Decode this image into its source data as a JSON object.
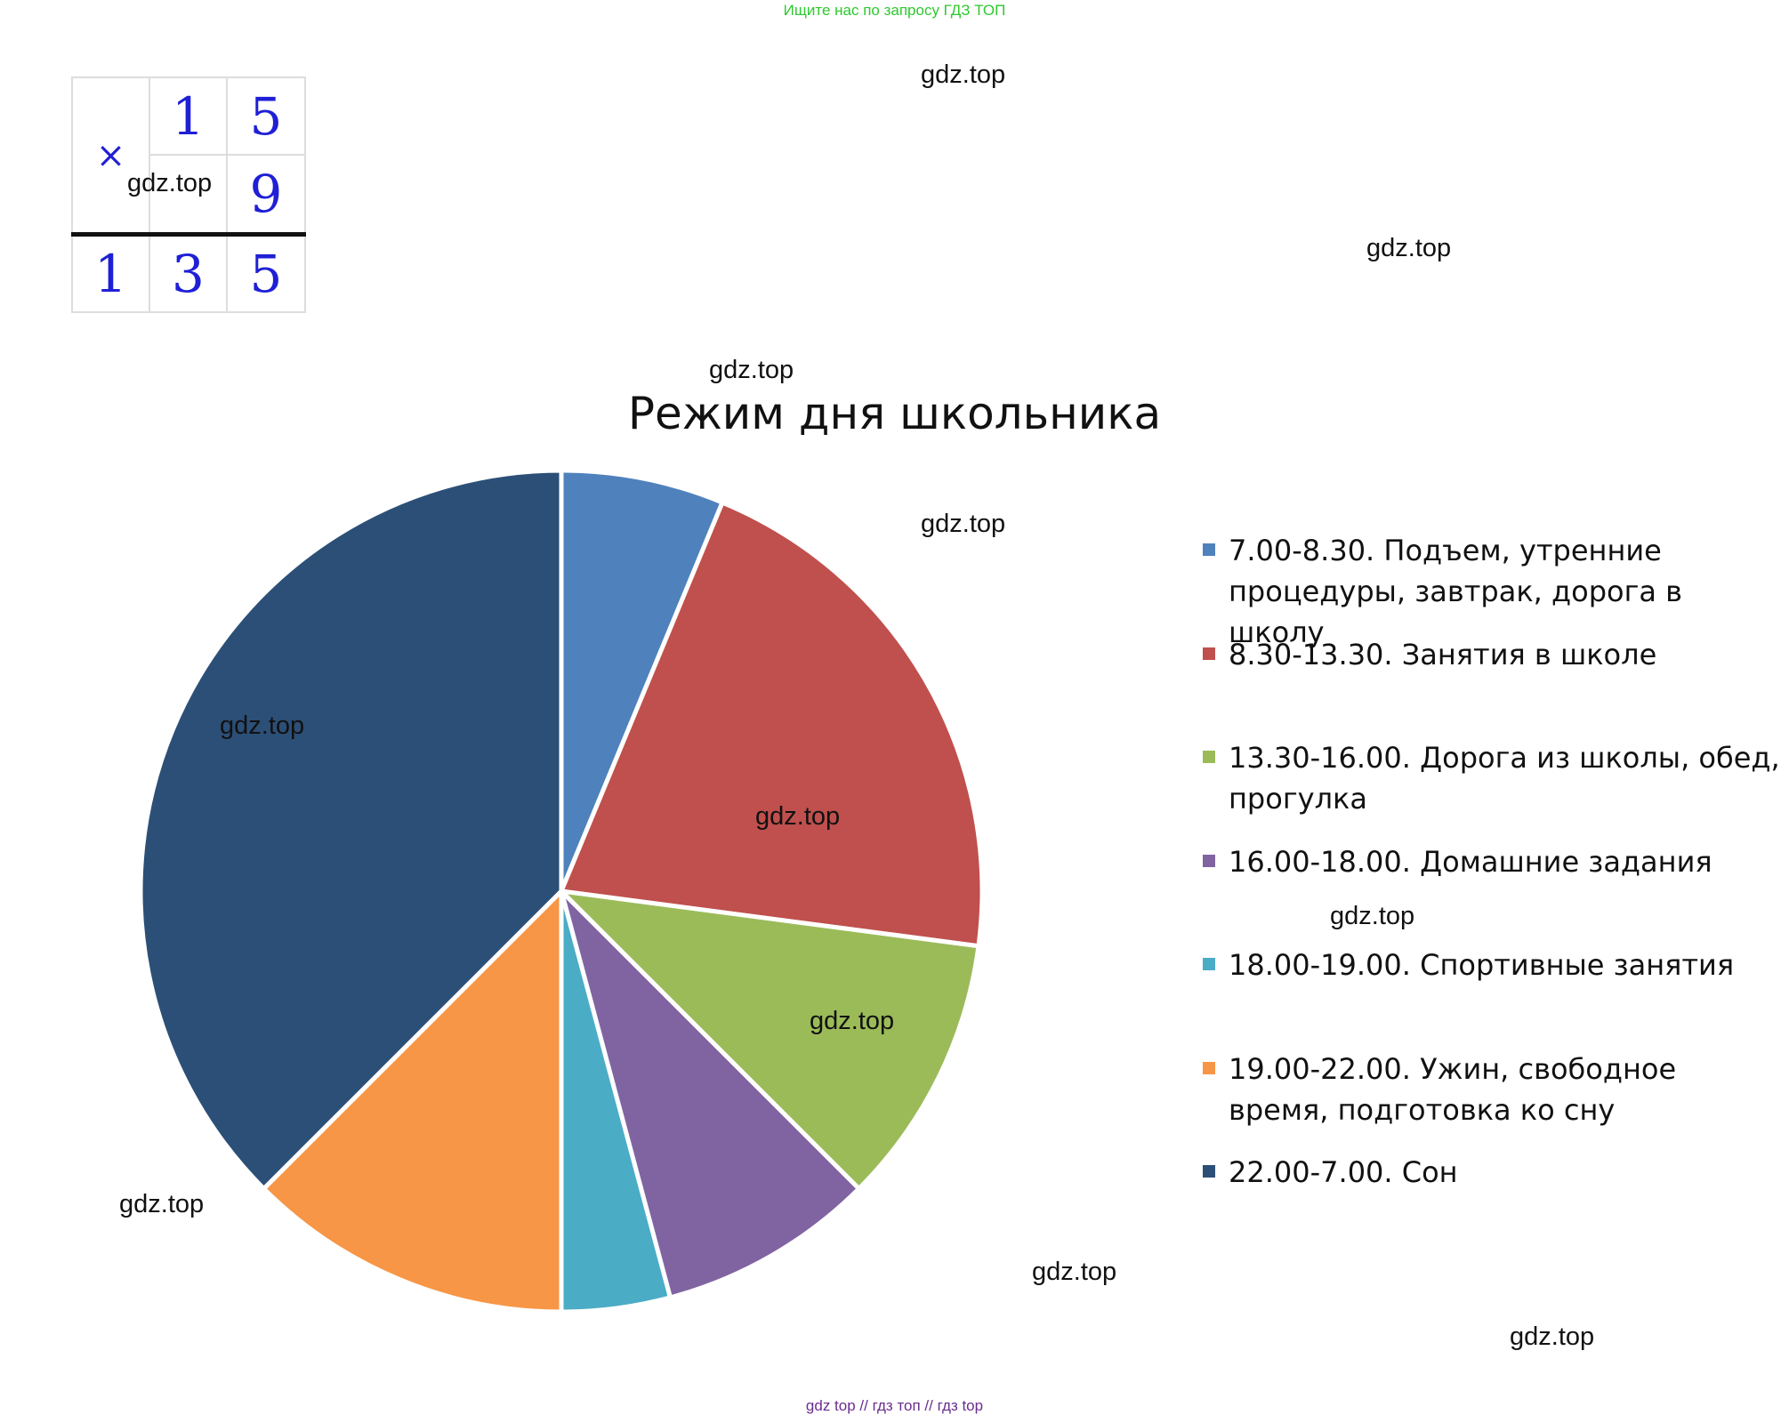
{
  "top_note": "Ищите нас по запросу ГДЗ ТОП",
  "watermark": "gdz.top",
  "footer": "gdz top  //  гдз топ  //  гдз top",
  "multiplication": {
    "sign": "×",
    "row1": [
      "1",
      "5"
    ],
    "row2": [
      "9"
    ],
    "result": [
      "1",
      "3",
      "5"
    ]
  },
  "chart_data": {
    "type": "pie",
    "title": "Режим дня школьника",
    "unit": "hours",
    "series": [
      {
        "label": "7.00-8.30. Подъем, утренние процедуры, завтрак, дорога в школу",
        "value": 1.5,
        "color": "#4f81bd"
      },
      {
        "label": "8.30-13.30. Занятия в школе",
        "value": 5,
        "color": "#c0504d"
      },
      {
        "label": "13.30-16.00. Дорога из школы, обед, прогулка",
        "value": 2.5,
        "color": "#9bbb59"
      },
      {
        "label": "16.00-18.00. Домашние задания",
        "value": 2,
        "color": "#8064a2"
      },
      {
        "label": "18.00-19.00. Спортивные занятия",
        "value": 1,
        "color": "#4bacc6"
      },
      {
        "label": "19.00-22.00. Ужин, свободное время, подготовка ко сну",
        "value": 3,
        "color": "#f79646"
      },
      {
        "label": "22.00-7.00. Сон",
        "value": 9,
        "color": "#2c4f77"
      }
    ],
    "legend_position": "right"
  }
}
